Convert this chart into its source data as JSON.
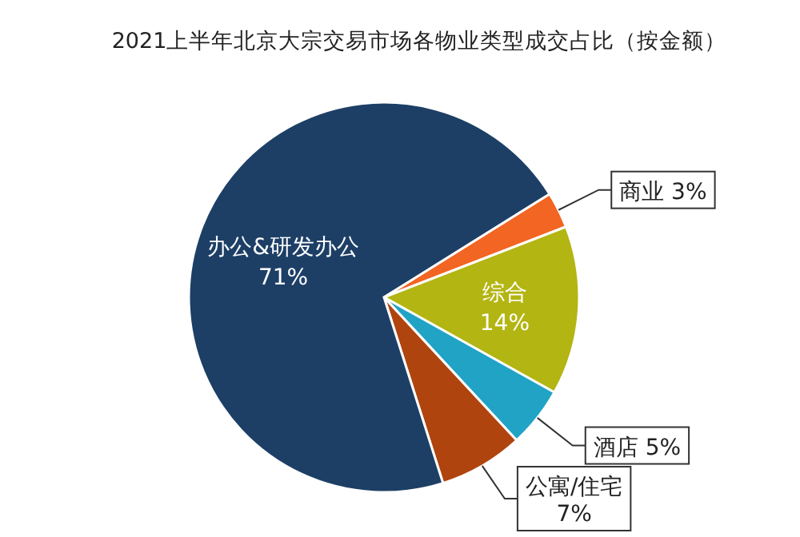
{
  "chart_data": {
    "type": "pie",
    "title": "2021上半年北京大宗交易市场各物业类型成交占比（按金额）",
    "categories": [
      "商业",
      "综合",
      "酒店",
      "公寓/住宅",
      "办公&研发办公"
    ],
    "values": [
      3,
      14,
      5,
      7,
      71
    ],
    "value_labels": [
      "3%",
      "14%",
      "5%",
      "7%",
      "71%"
    ],
    "colors": [
      "#f26522",
      "#b3b512",
      "#21a3c6",
      "#b0440e",
      "#1d3f66"
    ]
  }
}
